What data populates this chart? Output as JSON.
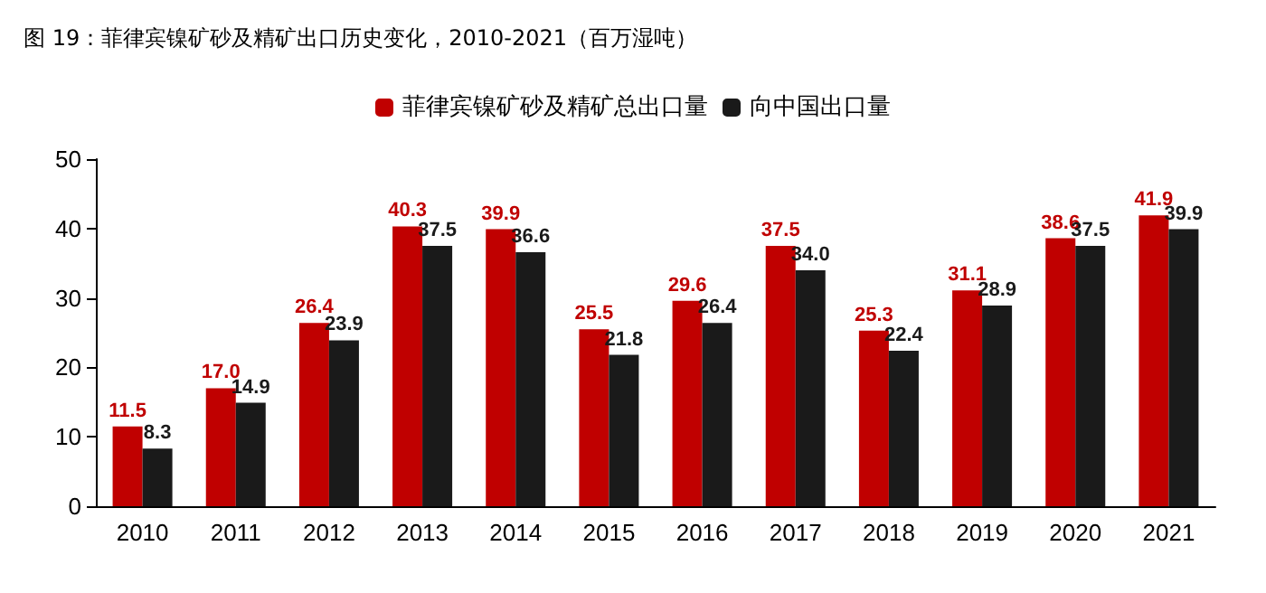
{
  "chart_data": {
    "type": "bar",
    "title": "图 19：菲律宾镍矿砂及精矿出口历史变化，2010-2021（百万湿吨）",
    "categories": [
      "2010",
      "2011",
      "2012",
      "2013",
      "2014",
      "2015",
      "2016",
      "2017",
      "2018",
      "2019",
      "2020",
      "2021"
    ],
    "series": [
      {
        "name": "菲律宾镍矿砂及精矿总出口量",
        "color": "#c00000",
        "values": [
          11.5,
          17.0,
          26.4,
          40.3,
          39.9,
          25.5,
          29.6,
          37.5,
          25.3,
          31.1,
          38.6,
          41.9
        ],
        "value_labels": [
          "11.5",
          "17.0",
          "26.4",
          "40.3",
          "39.9",
          "25.5",
          "29.6",
          "37.5",
          "25.3",
          "31.1",
          "38.6",
          "41.9"
        ]
      },
      {
        "name": "向中国出口量",
        "color": "#1a1a1a",
        "values": [
          8.3,
          14.9,
          23.9,
          37.5,
          36.6,
          21.8,
          26.4,
          34.0,
          22.4,
          28.9,
          37.5,
          39.9
        ],
        "value_labels": [
          "8.3",
          "14.9",
          "23.9",
          "37.5",
          "36.6",
          "21.8",
          "26.4",
          "34.0",
          "22.4",
          "28.9",
          "37.5",
          "39.9"
        ]
      }
    ],
    "ylim": [
      0,
      50
    ],
    "yticks": [
      0,
      10,
      20,
      30,
      40,
      50
    ],
    "grid": false,
    "legend": "top"
  }
}
